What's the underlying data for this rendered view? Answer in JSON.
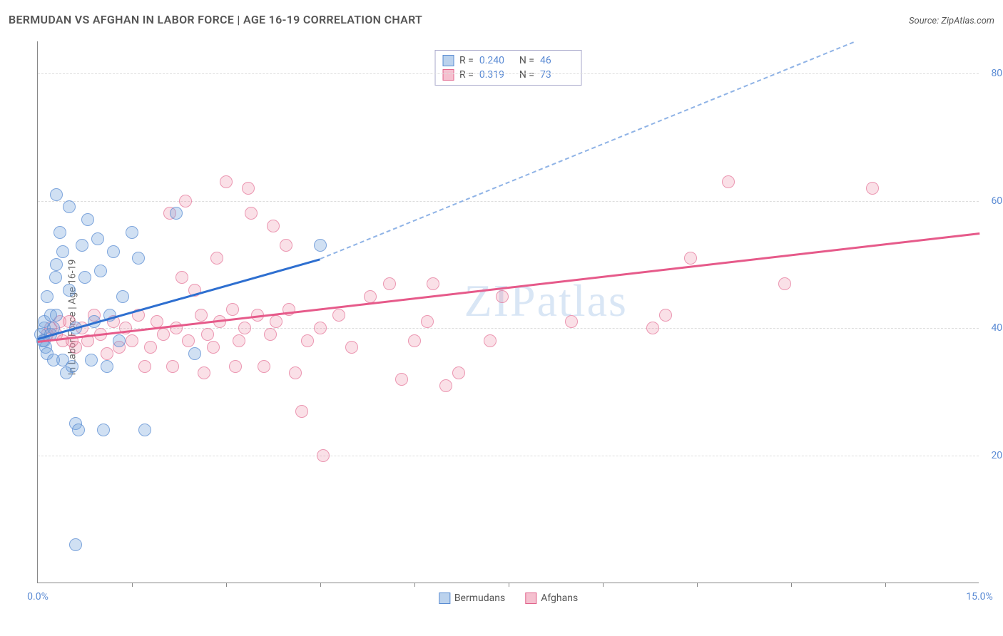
{
  "header": {
    "title": "BERMUDAN VS AFGHAN IN LABOR FORCE | AGE 16-19 CORRELATION CHART",
    "source": "Source: ZipAtlas.com"
  },
  "chart": {
    "type": "scatter",
    "ylabel": "In Labor Force | Age 16-19",
    "watermark": "ZIPatlas",
    "xlim": [
      0,
      15
    ],
    "ylim": [
      0,
      85
    ],
    "x_ticks": [
      0,
      15
    ],
    "x_tick_labels": [
      "0.0%",
      "15.0%"
    ],
    "x_minor_ticks": [
      1.5,
      3.0,
      4.5,
      6.0,
      7.5,
      9.0,
      10.5,
      12.0,
      13.5
    ],
    "y_ticks": [
      20,
      40,
      60,
      80
    ],
    "y_tick_labels": [
      "20.0%",
      "40.0%",
      "60.0%",
      "80.0%"
    ],
    "background_color": "#ffffff",
    "grid_color": "#dddddd",
    "axis_color": "#888888",
    "label_color": "#5b8bd4",
    "series": {
      "bermudans": {
        "label": "Bermudans",
        "color_fill": "rgba(120,165,220,0.35)",
        "color_stroke": "rgba(90,140,210,0.7)",
        "marker_radius": 9,
        "trend_color": "#2e6fd0",
        "trend_dash_color": "#8fb3e6",
        "trend_start": [
          0,
          38.5
        ],
        "trend_solid_end": [
          4.5,
          51
        ],
        "trend_dash_end": [
          13.0,
          85
        ],
        "R": "0.240",
        "N": "46",
        "points": [
          [
            0.05,
            39
          ],
          [
            0.1,
            40
          ],
          [
            0.1,
            38
          ],
          [
            0.1,
            41
          ],
          [
            0.12,
            37
          ],
          [
            0.15,
            45
          ],
          [
            0.2,
            42
          ],
          [
            0.2,
            39
          ],
          [
            0.25,
            40
          ],
          [
            0.28,
            48
          ],
          [
            0.3,
            50
          ],
          [
            0.3,
            61
          ],
          [
            0.35,
            55
          ],
          [
            0.4,
            52
          ],
          [
            0.4,
            35
          ],
          [
            0.45,
            33
          ],
          [
            0.5,
            59
          ],
          [
            0.5,
            46
          ],
          [
            0.55,
            34
          ],
          [
            0.6,
            25
          ],
          [
            0.6,
            40
          ],
          [
            0.65,
            24
          ],
          [
            0.7,
            53
          ],
          [
            0.75,
            48
          ],
          [
            0.8,
            57
          ],
          [
            0.85,
            35
          ],
          [
            0.9,
            41
          ],
          [
            0.95,
            54
          ],
          [
            1.0,
            49
          ],
          [
            1.05,
            24
          ],
          [
            1.1,
            34
          ],
          [
            1.15,
            42
          ],
          [
            1.2,
            52
          ],
          [
            1.3,
            38
          ],
          [
            1.35,
            45
          ],
          [
            1.5,
            55
          ],
          [
            1.6,
            51
          ],
          [
            1.7,
            24
          ],
          [
            0.6,
            6
          ],
          [
            0.15,
            36
          ],
          [
            2.5,
            36
          ],
          [
            2.2,
            58
          ],
          [
            4.5,
            53
          ],
          [
            0.25,
            35
          ],
          [
            0.3,
            42
          ],
          [
            0.08,
            38
          ]
        ]
      },
      "afghans": {
        "label": "Afghans",
        "color_fill": "rgba(235,130,160,0.25)",
        "color_stroke": "rgba(225,100,140,0.6)",
        "marker_radius": 9,
        "trend_color": "#e65a8a",
        "trend_start": [
          0,
          38
        ],
        "trend_end": [
          15,
          55
        ],
        "R": "0.319",
        "N": "73",
        "points": [
          [
            0.2,
            40
          ],
          [
            0.3,
            39
          ],
          [
            0.4,
            38
          ],
          [
            0.5,
            41
          ],
          [
            0.6,
            37
          ],
          [
            0.7,
            40
          ],
          [
            0.8,
            38
          ],
          [
            0.9,
            42
          ],
          [
            1.0,
            39
          ],
          [
            1.1,
            36
          ],
          [
            1.2,
            41
          ],
          [
            1.3,
            37
          ],
          [
            1.4,
            40
          ],
          [
            1.5,
            38
          ],
          [
            1.6,
            42
          ],
          [
            1.7,
            34
          ],
          [
            1.8,
            37
          ],
          [
            1.9,
            41
          ],
          [
            2.0,
            39
          ],
          [
            2.1,
            58
          ],
          [
            2.15,
            34
          ],
          [
            2.2,
            40
          ],
          [
            2.3,
            48
          ],
          [
            2.35,
            60
          ],
          [
            2.4,
            38
          ],
          [
            2.5,
            46
          ],
          [
            2.6,
            42
          ],
          [
            2.65,
            33
          ],
          [
            2.7,
            39
          ],
          [
            2.8,
            37
          ],
          [
            2.85,
            51
          ],
          [
            2.9,
            41
          ],
          [
            3.0,
            63
          ],
          [
            3.1,
            43
          ],
          [
            3.15,
            34
          ],
          [
            3.2,
            38
          ],
          [
            3.3,
            40
          ],
          [
            3.35,
            62
          ],
          [
            3.4,
            58
          ],
          [
            3.5,
            42
          ],
          [
            3.6,
            34
          ],
          [
            3.7,
            39
          ],
          [
            3.75,
            56
          ],
          [
            3.8,
            41
          ],
          [
            3.95,
            53
          ],
          [
            4.0,
            43
          ],
          [
            4.1,
            33
          ],
          [
            4.2,
            27
          ],
          [
            4.3,
            38
          ],
          [
            4.5,
            40
          ],
          [
            4.55,
            20
          ],
          [
            4.8,
            42
          ],
          [
            5.0,
            37
          ],
          [
            5.3,
            45
          ],
          [
            5.6,
            47
          ],
          [
            5.8,
            32
          ],
          [
            6.0,
            38
          ],
          [
            6.2,
            41
          ],
          [
            6.3,
            47
          ],
          [
            6.5,
            31
          ],
          [
            6.7,
            33
          ],
          [
            7.2,
            38
          ],
          [
            7.4,
            45
          ],
          [
            8.5,
            41
          ],
          [
            9.8,
            40
          ],
          [
            10.0,
            42
          ],
          [
            10.4,
            51
          ],
          [
            11.0,
            63
          ],
          [
            11.9,
            47
          ],
          [
            13.3,
            62
          ],
          [
            0.15,
            39
          ],
          [
            0.35,
            41
          ],
          [
            0.55,
            38
          ]
        ]
      }
    },
    "legend_bottom": [
      {
        "swatch": "blue",
        "label": "Bermudans"
      },
      {
        "swatch": "pink",
        "label": "Afghans"
      }
    ],
    "stats_box": [
      {
        "swatch": "blue",
        "R": "0.240",
        "N": "46"
      },
      {
        "swatch": "pink",
        "R": "0.319",
        "N": "73"
      }
    ]
  }
}
